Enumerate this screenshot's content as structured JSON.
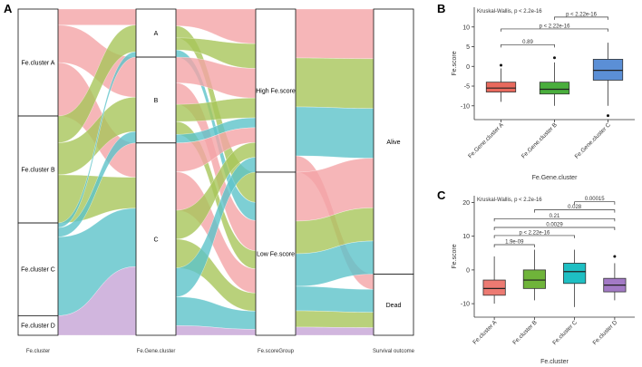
{
  "colors": {
    "pink": "#f4a4a6",
    "green": "#a8c65a",
    "teal": "#5cc3c9",
    "purple": "#c5a4d6",
    "box_b_a": "#e8695d",
    "box_b_b": "#4aae3d",
    "box_b_c": "#5b8fd6",
    "box_c_a": "#ec7a72",
    "box_c_b": "#6fb43a",
    "box_c_c": "#1ebfc3",
    "box_c_d": "#a37ac6"
  },
  "panels": {
    "A": {
      "letter": "A",
      "axes": [
        {
          "label": "Fe.cluster",
          "strata": [
            {
              "label": "Fe.cluster A",
              "value": 0.3,
              "color": "pink"
            },
            {
              "label": "Fe.cluster B",
              "value": 0.3,
              "color": "green"
            },
            {
              "label": "Fe.cluster C",
              "value": 0.26,
              "color": "teal"
            },
            {
              "label": "Fe.cluster D",
              "value": 0.055,
              "color": "purple"
            }
          ]
        },
        {
          "label": "Fe.Gene.cluster",
          "strata": [
            {
              "label": "A",
              "value": 0.14
            },
            {
              "label": "B",
              "value": 0.25
            },
            {
              "label": "C",
              "value": 0.56
            }
          ]
        },
        {
          "label": "Fe.scoreGroup",
          "strata": [
            {
              "label": "High Fe.score",
              "value": 0.47
            },
            {
              "label": "Low Fe.score",
              "value": 0.47
            }
          ]
        },
        {
          "label": "Survival outcome",
          "strata": [
            {
              "label": "Alive",
              "value": 0.78
            },
            {
              "label": "Dead",
              "value": 0.18
            }
          ]
        }
      ]
    },
    "B": {
      "letter": "B",
      "kw": "Kruskal-Wallis, p < 2.2e-16",
      "ylabel": "Fe.score",
      "xlabel": "Fe.Gene.cluster",
      "ylim": [
        -13.5,
        15
      ],
      "yticks": [
        -10,
        -5,
        0,
        5,
        10
      ],
      "categories": [
        "Fe.Gene.cluster A",
        "Fe.Gene.cluster B",
        "Fe.Gene.cluster C"
      ],
      "box_colors": [
        "box_b_a",
        "box_b_b",
        "box_b_c"
      ],
      "boxes": [
        {
          "min": -9,
          "q1": -6.5,
          "median": -5.5,
          "q3": -4,
          "max": -0.5,
          "outliers": [
            0.3
          ]
        },
        {
          "min": -10,
          "q1": -7,
          "median": -5.8,
          "q3": -4,
          "max": 1,
          "outliers": [
            2.2
          ]
        },
        {
          "min": -10,
          "q1": -3.5,
          "median": -1,
          "q3": 1.8,
          "max": 6,
          "outliers": [
            -12.5
          ]
        }
      ],
      "comparisons": [
        {
          "from": 0,
          "to": 1,
          "label": "0.89",
          "y": 5.5
        },
        {
          "from": 0,
          "to": 2,
          "label": "p < 2.22e-16",
          "y": 9.5
        },
        {
          "from": 1,
          "to": 2,
          "label": "p < 2.22e-16",
          "y": 12.5
        }
      ]
    },
    "C": {
      "letter": "C",
      "kw": "Kruskal-Wallis, p < 2.2e-16",
      "ylabel": "Fe.score",
      "xlabel": "Fe.cluster",
      "ylim": [
        -14,
        22
      ],
      "yticks": [
        -10,
        0,
        10,
        20
      ],
      "categories": [
        "Fe.cluster A",
        "Fe.cluster B",
        "Fe.cluster C",
        "Fe.cluster D"
      ],
      "box_colors": [
        "box_c_a",
        "box_c_b",
        "box_c_c",
        "box_c_d"
      ],
      "boxes": [
        {
          "min": -10,
          "q1": -7.5,
          "median": -5.5,
          "q3": -3,
          "max": 4,
          "outliers": []
        },
        {
          "min": -9,
          "q1": -5.5,
          "median": -3,
          "q3": 0,
          "max": 6,
          "outliers": []
        },
        {
          "min": -11,
          "q1": -4,
          "median": -0.5,
          "q3": 2,
          "max": 6,
          "outliers": []
        },
        {
          "min": -9,
          "q1": -6.5,
          "median": -4.5,
          "q3": -2.5,
          "max": 2,
          "outliers": [
            4
          ]
        }
      ],
      "comparisons": [
        {
          "from": 0,
          "to": 1,
          "label": "1.9e-09",
          "y": 7.5
        },
        {
          "from": 0,
          "to": 2,
          "label": "p < 2.22e-16",
          "y": 10.2
        },
        {
          "from": 0,
          "to": 3,
          "label": "0.0029",
          "y": 12.6
        },
        {
          "from": 0,
          "to": 3,
          "label": "0.21",
          "y": 15.2
        },
        {
          "from": 1,
          "to": 3,
          "label": "0.028",
          "y": 17.8
        },
        {
          "from": 2,
          "to": 3,
          "label": "0.00015",
          "y": 20.2
        }
      ]
    }
  },
  "chart_data": [
    {
      "type": "alluvial",
      "axes": [
        "Fe.cluster",
        "Fe.Gene.cluster",
        "Fe.scoreGroup",
        "Survival outcome"
      ],
      "strata": {
        "Fe.cluster": [
          "Fe.cluster A",
          "Fe.cluster B",
          "Fe.cluster C",
          "Fe.cluster D"
        ],
        "Fe.Gene.cluster": [
          "A",
          "B",
          "C"
        ],
        "Fe.scoreGroup": [
          "High Fe.score",
          "Low Fe.score"
        ],
        "Survival outcome": [
          "Alive",
          "Dead"
        ]
      }
    },
    {
      "type": "boxplot",
      "title": "",
      "xlabel": "Fe.Gene.cluster",
      "ylabel": "Fe.score",
      "annotation": "Kruskal-Wallis, p < 2.2e-16",
      "categories": [
        "Fe.Gene.cluster A",
        "Fe.Gene.cluster B",
        "Fe.Gene.cluster C"
      ],
      "medians": [
        -5.5,
        -5.8,
        -1
      ]
    },
    {
      "type": "boxplot",
      "title": "",
      "xlabel": "Fe.cluster",
      "ylabel": "Fe.score",
      "annotation": "Kruskal-Wallis, p < 2.2e-16",
      "categories": [
        "Fe.cluster A",
        "Fe.cluster B",
        "Fe.cluster C",
        "Fe.cluster D"
      ],
      "medians": [
        -5.5,
        -3,
        -0.5,
        -4.5
      ]
    }
  ]
}
